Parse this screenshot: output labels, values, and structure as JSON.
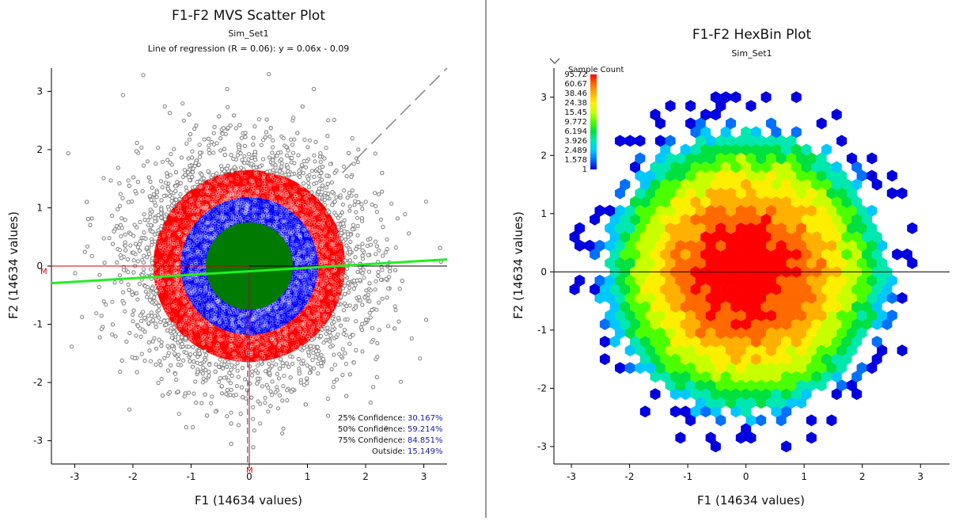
{
  "chart_data": [
    {
      "type": "scatter",
      "title": "F1-F2 MVS Scatter Plot",
      "subtitle": "Sim_Set1",
      "regression_label": "Line of regression (R = 0.06):  y = 0.06x - 0.09",
      "xlabel": "F1 (14634 values)",
      "ylabel": "F2 (14634 values)",
      "xlim": [
        -3.4,
        3.4
      ],
      "ylim": [
        -3.4,
        3.4
      ],
      "xticks": [
        "-3",
        "-2",
        "-1",
        "0",
        "1",
        "2",
        "3"
      ],
      "yticks": [
        "3",
        "2",
        "1",
        "0",
        "-1",
        "-2",
        "-3"
      ],
      "regression": {
        "slope": 0.06,
        "intercept": -0.09,
        "color": "#22ee22"
      },
      "confidence_radii": {
        "c75": 1.65,
        "c50": 1.18,
        "c25": 0.75
      },
      "region_colors": {
        "outside": "#808080",
        "c75": "#ff0000",
        "c50": "#0000ff",
        "c25": "#007a00"
      },
      "point_count": 14634,
      "median_marker": "M",
      "confidence": [
        {
          "label": "25% Confidence:",
          "value": "30.167%"
        },
        {
          "label": "50% Confidence:",
          "value": "59.214%"
        },
        {
          "label": "75% Confidence:",
          "value": "84.851%"
        },
        {
          "label": "Outside:",
          "value": "15.149%"
        }
      ]
    },
    {
      "type": "heatmap",
      "title": "F1-F2 HexBin Plot",
      "subtitle": "Sim_Set1",
      "xlabel": "F1 (14634 values)",
      "ylabel": "F2 (14634 values)",
      "xlim": [
        -3.3,
        3.5
      ],
      "ylim": [
        -3.3,
        3.5
      ],
      "xticks": [
        "-3",
        "-2",
        "-1",
        "0",
        "1",
        "2",
        "3"
      ],
      "yticks": [
        "3",
        "2",
        "1",
        "0",
        "-1",
        "-2",
        "-3"
      ],
      "colorbar": {
        "title": "Sample Count",
        "ticks": [
          "95.72",
          "60.67",
          "38.46",
          "24.38",
          "15.45",
          "9.772",
          "6.194",
          "3.926",
          "2.489",
          "1.578",
          "1"
        ],
        "colors": [
          "#ff0000",
          "#ff6a00",
          "#ffb000",
          "#ffee00",
          "#c8ff00",
          "#4cff00",
          "#00e040",
          "#00e8b0",
          "#00c8ff",
          "#0070ff",
          "#0000e0"
        ]
      },
      "hex_size": 0.1,
      "max_count": 95.72
    }
  ]
}
